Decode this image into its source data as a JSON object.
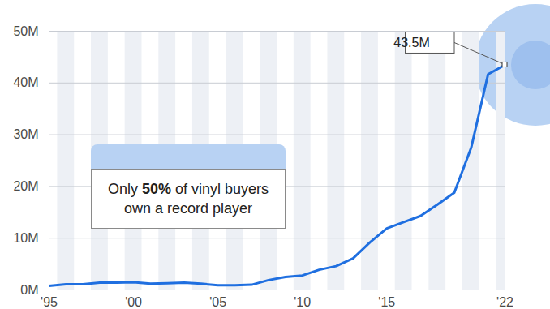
{
  "chart_data": {
    "type": "line",
    "x": [
      1995,
      1996,
      1997,
      1998,
      1999,
      2000,
      2001,
      2002,
      2003,
      2004,
      2005,
      2006,
      2007,
      2008,
      2009,
      2010,
      2011,
      2012,
      2013,
      2014,
      2015,
      2016,
      2017,
      2018,
      2019,
      2020,
      2021,
      2022
    ],
    "values": [
      0.8,
      1.1,
      1.1,
      1.4,
      1.4,
      1.5,
      1.2,
      1.3,
      1.4,
      1.2,
      0.9,
      0.9,
      1.0,
      1.9,
      2.5,
      2.8,
      3.9,
      4.6,
      6.1,
      9.2,
      11.9,
      13.1,
      14.3,
      16.5,
      18.8,
      27.5,
      41.7,
      43.5
    ],
    "color": "#1f6fe0",
    "xlim": [
      1995,
      2022
    ],
    "xticks": [
      {
        "value": 1995,
        "label": "'95"
      },
      {
        "value": 2000,
        "label": "'00"
      },
      {
        "value": 2005,
        "label": "'05"
      },
      {
        "value": 2010,
        "label": "'10"
      },
      {
        "value": 2015,
        "label": "'15"
      },
      {
        "value": 2022,
        "label": "'22"
      }
    ],
    "ylim": [
      0,
      50
    ],
    "yticks": [
      {
        "value": 0,
        "label": "0M"
      },
      {
        "value": 10,
        "label": "10M"
      },
      {
        "value": 20,
        "label": "20M"
      },
      {
        "value": 30,
        "label": "30M"
      },
      {
        "value": 40,
        "label": "40M"
      },
      {
        "value": 50,
        "label": "50M"
      }
    ],
    "grid": true,
    "annotations": [
      {
        "x": 2022,
        "y": 43.5,
        "label": "43.5M"
      },
      {
        "text": "Only 50% of vinyl buyers own a record player",
        "bold": "50%"
      }
    ]
  }
}
